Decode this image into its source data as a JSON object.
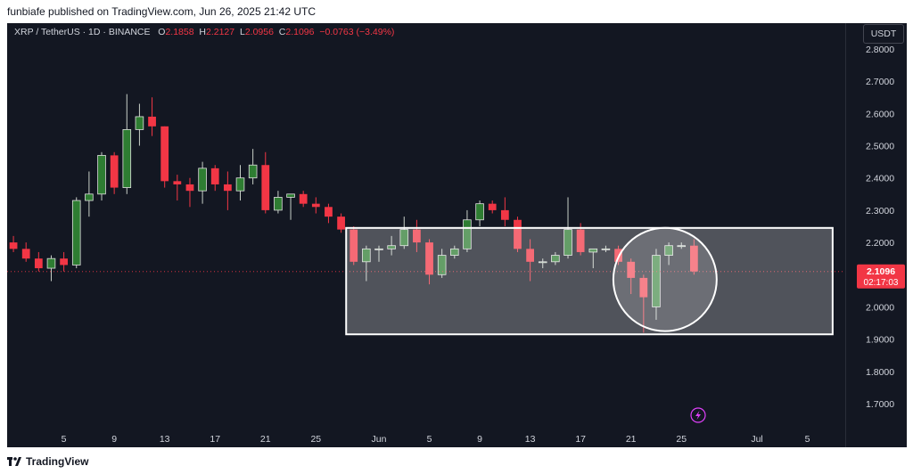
{
  "publish_line": "funbiafe published on TradingView.com, Jun 26, 2025 21:42 UTC",
  "header": {
    "symbol": "XRP / TetherUS · 1D · BINANCE",
    "open_label": "O",
    "open": "2.1858",
    "high_label": "H",
    "high": "2.2127",
    "low_label": "L",
    "low": "2.0956",
    "close_label": "C",
    "close": "2.1096",
    "change": "−0.0763 (−3.49%)"
  },
  "currency": "USDT",
  "last_price": {
    "price": "2.1096",
    "countdown": "02:17:03"
  },
  "brand": {
    "name": "TradingView"
  },
  "colors": {
    "up": "#2e7d32",
    "down": "#f23645",
    "background": "#131722",
    "axis_text": "#d1d4dc",
    "accent": "#e040fb"
  },
  "icons": {
    "replay": "lightning-icon",
    "logo": "tradingview-logo-icon"
  },
  "chart_data": {
    "type": "candlestick",
    "y_ticks": [
      "2.8000",
      "2.7000",
      "2.6000",
      "2.5000",
      "2.4000",
      "2.3000",
      "2.2000",
      "2.1000",
      "2.0000",
      "1.9000",
      "1.8000",
      "1.7000"
    ],
    "x_ticks": [
      {
        "label": "5",
        "i": 5
      },
      {
        "label": "9",
        "i": 9
      },
      {
        "label": "13",
        "i": 13
      },
      {
        "label": "17",
        "i": 17
      },
      {
        "label": "21",
        "i": 21
      },
      {
        "label": "25",
        "i": 25
      },
      {
        "label": "Jun",
        "i": 30
      },
      {
        "label": "5",
        "i": 34
      },
      {
        "label": "9",
        "i": 38
      },
      {
        "label": "13",
        "i": 42
      },
      {
        "label": "17",
        "i": 46
      },
      {
        "label": "21",
        "i": 50
      },
      {
        "label": "25",
        "i": 54
      },
      {
        "label": "Jul",
        "i": 60
      },
      {
        "label": "5",
        "i": 64
      }
    ],
    "y_range": [
      1.62,
      2.88
    ],
    "index_range": [
      0.5,
      67
    ],
    "candles": [
      {
        "o": 2.21,
        "h": 2.23,
        "l": 2.18,
        "c": 2.2
      },
      {
        "o": 2.2,
        "h": 2.22,
        "l": 2.17,
        "c": 2.18
      },
      {
        "o": 2.18,
        "h": 2.2,
        "l": 2.14,
        "c": 2.15
      },
      {
        "o": 2.15,
        "h": 2.17,
        "l": 2.11,
        "c": 2.12
      },
      {
        "o": 2.12,
        "h": 2.16,
        "l": 2.08,
        "c": 2.15
      },
      {
        "o": 2.15,
        "h": 2.17,
        "l": 2.11,
        "c": 2.13
      },
      {
        "o": 2.13,
        "h": 2.34,
        "l": 2.12,
        "c": 2.33
      },
      {
        "o": 2.33,
        "h": 2.42,
        "l": 2.28,
        "c": 2.35
      },
      {
        "o": 2.35,
        "h": 2.48,
        "l": 2.33,
        "c": 2.47
      },
      {
        "o": 2.47,
        "h": 2.48,
        "l": 2.35,
        "c": 2.37
      },
      {
        "o": 2.37,
        "h": 2.66,
        "l": 2.35,
        "c": 2.55
      },
      {
        "o": 2.55,
        "h": 2.63,
        "l": 2.5,
        "c": 2.59
      },
      {
        "o": 2.59,
        "h": 2.65,
        "l": 2.53,
        "c": 2.56
      },
      {
        "o": 2.56,
        "h": 2.56,
        "l": 2.37,
        "c": 2.39
      },
      {
        "o": 2.39,
        "h": 2.41,
        "l": 2.33,
        "c": 2.38
      },
      {
        "o": 2.38,
        "h": 2.4,
        "l": 2.31,
        "c": 2.36
      },
      {
        "o": 2.36,
        "h": 2.45,
        "l": 2.32,
        "c": 2.43
      },
      {
        "o": 2.43,
        "h": 2.44,
        "l": 2.36,
        "c": 2.38
      },
      {
        "o": 2.38,
        "h": 2.42,
        "l": 2.3,
        "c": 2.36
      },
      {
        "o": 2.36,
        "h": 2.44,
        "l": 2.33,
        "c": 2.4
      },
      {
        "o": 2.4,
        "h": 2.49,
        "l": 2.38,
        "c": 2.44
      },
      {
        "o": 2.44,
        "h": 2.48,
        "l": 2.29,
        "c": 2.3
      },
      {
        "o": 2.3,
        "h": 2.36,
        "l": 2.29,
        "c": 2.34
      },
      {
        "o": 2.34,
        "h": 2.35,
        "l": 2.27,
        "c": 2.35
      },
      {
        "o": 2.35,
        "h": 2.36,
        "l": 2.31,
        "c": 2.32
      },
      {
        "o": 2.32,
        "h": 2.34,
        "l": 2.29,
        "c": 2.31
      },
      {
        "o": 2.31,
        "h": 2.32,
        "l": 2.26,
        "c": 2.28
      },
      {
        "o": 2.28,
        "h": 2.29,
        "l": 2.23,
        "c": 2.24
      },
      {
        "o": 2.24,
        "h": 2.25,
        "l": 2.13,
        "c": 2.14
      },
      {
        "o": 2.14,
        "h": 2.19,
        "l": 2.08,
        "c": 2.18
      },
      {
        "o": 2.18,
        "h": 2.19,
        "l": 2.14,
        "c": 2.18
      },
      {
        "o": 2.18,
        "h": 2.22,
        "l": 2.16,
        "c": 2.19
      },
      {
        "o": 2.19,
        "h": 2.28,
        "l": 2.18,
        "c": 2.24
      },
      {
        "o": 2.24,
        "h": 2.27,
        "l": 2.17,
        "c": 2.2
      },
      {
        "o": 2.2,
        "h": 2.21,
        "l": 2.07,
        "c": 2.1
      },
      {
        "o": 2.1,
        "h": 2.18,
        "l": 2.09,
        "c": 2.16
      },
      {
        "o": 2.16,
        "h": 2.19,
        "l": 2.15,
        "c": 2.18
      },
      {
        "o": 2.18,
        "h": 2.3,
        "l": 2.17,
        "c": 2.27
      },
      {
        "o": 2.27,
        "h": 2.33,
        "l": 2.25,
        "c": 2.32
      },
      {
        "o": 2.32,
        "h": 2.33,
        "l": 2.29,
        "c": 2.3
      },
      {
        "o": 2.3,
        "h": 2.34,
        "l": 2.25,
        "c": 2.27
      },
      {
        "o": 2.27,
        "h": 2.28,
        "l": 2.17,
        "c": 2.18
      },
      {
        "o": 2.18,
        "h": 2.21,
        "l": 2.08,
        "c": 2.14
      },
      {
        "o": 2.14,
        "h": 2.15,
        "l": 2.12,
        "c": 2.14
      },
      {
        "o": 2.14,
        "h": 2.17,
        "l": 2.13,
        "c": 2.16
      },
      {
        "o": 2.16,
        "h": 2.34,
        "l": 2.15,
        "c": 2.24
      },
      {
        "o": 2.24,
        "h": 2.26,
        "l": 2.16,
        "c": 2.17
      },
      {
        "o": 2.17,
        "h": 2.18,
        "l": 2.12,
        "c": 2.18
      },
      {
        "o": 2.18,
        "h": 2.19,
        "l": 2.17,
        "c": 2.18
      },
      {
        "o": 2.18,
        "h": 2.19,
        "l": 2.13,
        "c": 2.14
      },
      {
        "o": 2.14,
        "h": 2.15,
        "l": 2.04,
        "c": 2.09
      },
      {
        "o": 2.09,
        "h": 2.1,
        "l": 1.92,
        "c": 2.03
      },
      {
        "o": 2.0,
        "h": 2.18,
        "l": 1.96,
        "c": 2.16
      },
      {
        "o": 2.16,
        "h": 2.2,
        "l": 2.13,
        "c": 2.19
      },
      {
        "o": 2.19,
        "h": 2.2,
        "l": 2.18,
        "c": 2.19
      },
      {
        "o": 2.19,
        "h": 2.21,
        "l": 2.1,
        "c": 2.11
      }
    ]
  }
}
